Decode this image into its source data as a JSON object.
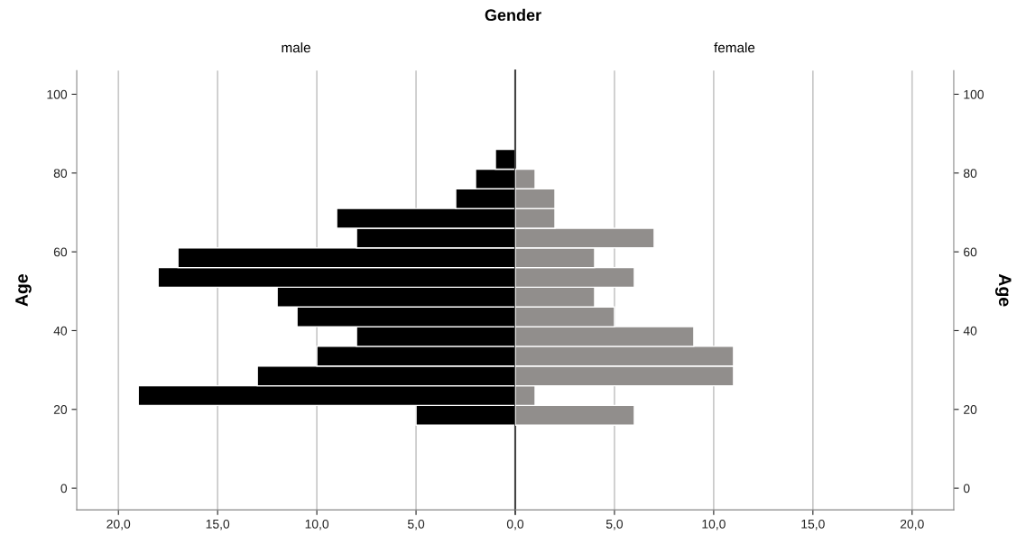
{
  "chart_data": [
    {
      "type": "histogram",
      "orientation": "horizontal",
      "title": "Gender",
      "subtitle": "male",
      "ylabel": "Age",
      "color": "#000000",
      "bins": [
        16,
        21,
        26,
        31,
        36,
        41,
        46,
        51,
        56,
        61,
        66,
        71,
        76,
        81,
        86
      ],
      "values": [
        5,
        19,
        13,
        10,
        8,
        11,
        12,
        18,
        17,
        8,
        9,
        3,
        2,
        1
      ],
      "xlim": [
        22.1,
        0
      ],
      "xticks": [
        {
          "value": 20,
          "label": "20,0"
        },
        {
          "value": 15,
          "label": "15,0"
        },
        {
          "value": 10,
          "label": "10,0"
        },
        {
          "value": 5,
          "label": "5,0"
        },
        {
          "value": 0,
          "label": "0,0"
        }
      ],
      "ylim": [
        -5.5,
        106
      ],
      "yticks": [
        0,
        20,
        40,
        60,
        80,
        100
      ],
      "grid": "x"
    },
    {
      "type": "histogram",
      "orientation": "horizontal",
      "subtitle": "female",
      "ylabel": "Age",
      "color": "#918e8c",
      "bins": [
        16,
        21,
        26,
        31,
        36,
        41,
        46,
        51,
        56,
        61,
        66,
        71,
        76,
        81,
        86
      ],
      "values": [
        6,
        1,
        11,
        11,
        9,
        5,
        4,
        6,
        4,
        7,
        2,
        2,
        1,
        0
      ],
      "xlim": [
        0,
        22.1
      ],
      "xticks": [
        {
          "value": 0,
          "label": null
        },
        {
          "value": 5,
          "label": "5,0"
        },
        {
          "value": 10,
          "label": "10,0"
        },
        {
          "value": 15,
          "label": "15,0"
        },
        {
          "value": 20,
          "label": "20,0"
        }
      ],
      "ylim": [
        -5.5,
        106
      ],
      "yticks": [
        0,
        20,
        40,
        60,
        80,
        100
      ],
      "grid": "x"
    }
  ]
}
